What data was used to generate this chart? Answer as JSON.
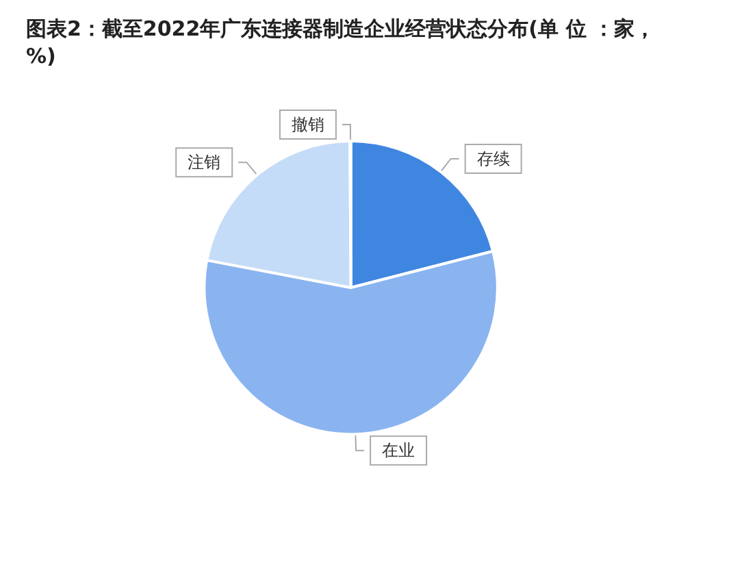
{
  "chart_data": {
    "type": "pie",
    "title": "图表2：截至2022年广东连接器制造企业经营状态分布(单 位 ：家，%)",
    "categories": [
      "存续",
      "在业",
      "注销",
      "撤销"
    ],
    "values": [
      21,
      57,
      21.9,
      0.1
    ],
    "colors": [
      "#3f86e0",
      "#8ab4f0",
      "#c5dcf8",
      "#e6f0fc"
    ],
    "legend": false
  }
}
